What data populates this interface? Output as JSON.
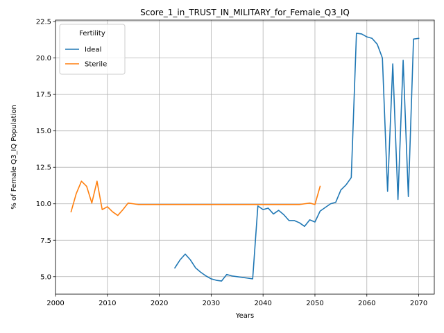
{
  "chart_data": {
    "type": "line",
    "title": "Score_1_in_TRUST_IN_MILITARY_for_Female_Q3_IQ",
    "xlabel": "Years",
    "ylabel": "% of Female Q3_IQ Population",
    "xlim": [
      2000,
      2073
    ],
    "ylim": [
      3.8,
      22.6
    ],
    "xticks": [
      2000,
      2010,
      2020,
      2030,
      2040,
      2050,
      2060,
      2070
    ],
    "yticks": [
      5.0,
      7.5,
      10.0,
      12.5,
      15.0,
      17.5,
      20.0,
      22.5
    ],
    "ytick_labels": [
      "5.0",
      "7.5",
      "10.0",
      "12.5",
      "15.0",
      "17.5",
      "20.0",
      "22.5"
    ],
    "grid": true,
    "legend": {
      "title": "Fertility",
      "placement": "top-left"
    },
    "series": [
      {
        "name": "Ideal",
        "color": "#1f77b4",
        "x": [
          2023,
          2024,
          2025,
          2026,
          2027,
          2028,
          2029,
          2030,
          2031,
          2032,
          2033,
          2034,
          2035,
          2036,
          2037,
          2038,
          2039,
          2040,
          2041,
          2042,
          2043,
          2044,
          2045,
          2046,
          2047,
          2048,
          2049,
          2050,
          2051,
          2052,
          2053,
          2054,
          2055,
          2056,
          2057,
          2058,
          2059,
          2060,
          2061,
          2062,
          2063,
          2064,
          2065,
          2066,
          2067,
          2068,
          2069,
          2070
        ],
        "y": [
          5.6,
          6.15,
          6.55,
          6.15,
          5.6,
          5.3,
          5.05,
          4.85,
          4.75,
          4.7,
          5.15,
          5.05,
          5.0,
          4.95,
          4.9,
          4.85,
          9.85,
          9.6,
          9.7,
          9.3,
          9.55,
          9.25,
          8.85,
          8.85,
          8.7,
          8.45,
          8.9,
          8.75,
          9.5,
          9.75,
          10.0,
          10.1,
          10.95,
          11.3,
          11.8,
          21.7,
          21.65,
          21.45,
          21.35,
          20.95,
          20.0,
          10.85,
          19.6,
          10.3,
          19.85,
          10.5,
          21.3,
          21.35
        ]
      },
      {
        "name": "Sterile",
        "color": "#ff7f0e",
        "x": [
          2003,
          2004,
          2005,
          2006,
          2007,
          2008,
          2009,
          2010,
          2011,
          2012,
          2013,
          2014,
          2015,
          2016,
          2017,
          2018,
          2019,
          2020,
          2021,
          2022,
          2023,
          2024,
          2025,
          2026,
          2027,
          2028,
          2029,
          2030,
          2031,
          2032,
          2033,
          2034,
          2035,
          2036,
          2037,
          2038,
          2039,
          2040,
          2041,
          2042,
          2043,
          2044,
          2045,
          2046,
          2047,
          2048,
          2049,
          2050,
          2051
        ],
        "y": [
          9.45,
          10.7,
          11.55,
          11.2,
          10.05,
          11.55,
          9.6,
          9.8,
          9.45,
          9.2,
          9.6,
          10.05,
          10.0,
          9.95,
          9.95,
          9.95,
          9.95,
          9.95,
          9.95,
          9.95,
          9.95,
          9.95,
          9.95,
          9.95,
          9.95,
          9.95,
          9.95,
          9.95,
          9.95,
          9.95,
          9.95,
          9.95,
          9.95,
          9.95,
          9.95,
          9.95,
          9.95,
          9.95,
          9.95,
          9.95,
          9.95,
          9.95,
          9.95,
          9.95,
          9.95,
          10.0,
          10.05,
          9.95,
          11.2
        ]
      }
    ]
  }
}
